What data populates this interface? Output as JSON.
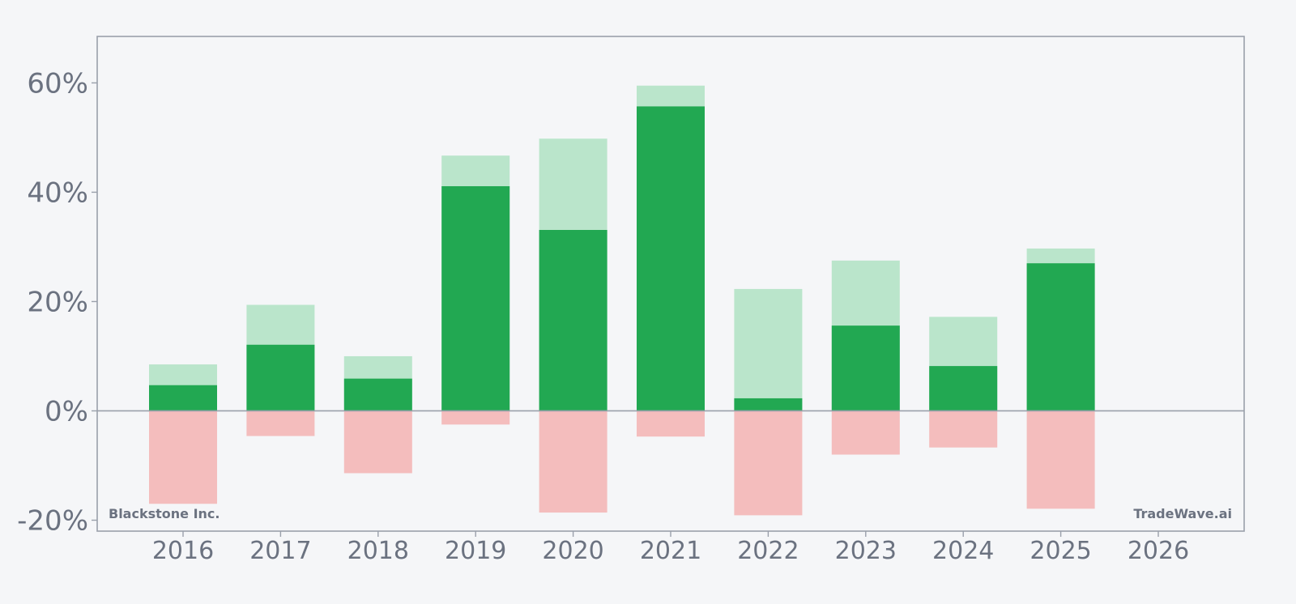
{
  "chart_data": {
    "type": "bar",
    "categories": [
      "2016",
      "2017",
      "2018",
      "2019",
      "2020",
      "2021",
      "2022",
      "2023",
      "2024",
      "2025",
      "2026"
    ],
    "series": [
      {
        "values": [
          4.7,
          12.1,
          5.9,
          41.1,
          33.1,
          55.7,
          2.3,
          15.6,
          8.2,
          27.0,
          null
        ]
      },
      {
        "values": [
          8.5,
          19.4,
          10.0,
          46.7,
          49.8,
          59.5,
          22.3,
          27.5,
          17.2,
          29.7,
          null
        ]
      },
      {
        "values": [
          -17.0,
          -4.6,
          -11.4,
          -2.5,
          -18.6,
          -4.7,
          -19.1,
          -8.0,
          -6.7,
          -17.9,
          null
        ]
      }
    ],
    "y_ticks": [
      60,
      40,
      20,
      0,
      -20
    ],
    "y_tick_labels": [
      "60%",
      "40%",
      "20%",
      "0%",
      "-20%"
    ],
    "ylim": [
      -22,
      68.5
    ],
    "grid": false,
    "legend": false,
    "colors": {
      "value": "#22a852",
      "high": "#bae5cb",
      "low": "#f4bdbd",
      "axis": "#9aa0ab",
      "text": "#6b7280"
    }
  },
  "watermark_left": "Blackstone Inc.",
  "watermark_right": "TradeWave.ai"
}
